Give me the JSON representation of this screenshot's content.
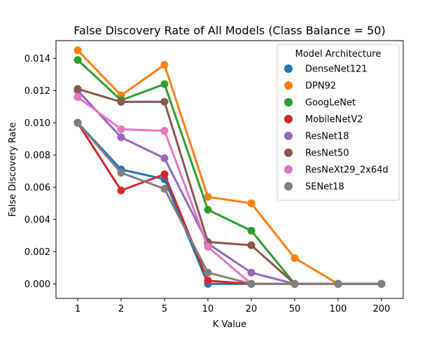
{
  "chart_data": {
    "type": "line",
    "title": "False Discovery Rate of All Models (Class Balance = 50)",
    "xlabel": "K Value",
    "ylabel": "False Discovery Rate",
    "categories": [
      "1",
      "2",
      "5",
      "10",
      "20",
      "50",
      "100",
      "200"
    ],
    "ylim": [
      -0.0009,
      0.0151
    ],
    "yticks": [
      0.0,
      0.002,
      0.004,
      0.006,
      0.008,
      0.01,
      0.012,
      0.014
    ],
    "ytick_labels": [
      "0.000",
      "0.002",
      "0.004",
      "0.006",
      "0.008",
      "0.010",
      "0.012",
      "0.014"
    ],
    "grid": false,
    "legend": {
      "title": "Model Architecture",
      "placement": "top-right"
    },
    "series": [
      {
        "name": "DenseNet121",
        "color": "#1f77b4",
        "values": [
          0.01,
          0.0071,
          0.0065,
          0.0,
          0.0,
          0.0,
          0.0,
          0.0
        ]
      },
      {
        "name": "DPN92",
        "color": "#ff7f0e",
        "values": [
          0.0145,
          0.0117,
          0.0136,
          0.0054,
          0.005,
          0.0016,
          0.0,
          0.0
        ]
      },
      {
        "name": "GoogLeNet",
        "color": "#2ca02c",
        "values": [
          0.0139,
          0.0114,
          0.0124,
          0.0046,
          0.0033,
          0.0,
          0.0,
          0.0
        ]
      },
      {
        "name": "MobileNetV2",
        "color": "#d62728",
        "values": [
          0.01,
          0.0058,
          0.0068,
          0.0002,
          0.0,
          0.0,
          0.0,
          0.0
        ]
      },
      {
        "name": "ResNet18",
        "color": "#9467bd",
        "values": [
          0.012,
          0.0091,
          0.0078,
          0.0025,
          0.0007,
          0.0,
          0.0,
          0.0
        ]
      },
      {
        "name": "ResNet50",
        "color": "#8c564b",
        "values": [
          0.0121,
          0.0113,
          0.0113,
          0.0026,
          0.0024,
          0.0,
          0.0,
          0.0
        ]
      },
      {
        "name": "ResNeXt29_2x64d",
        "color": "#e377c2",
        "values": [
          0.0116,
          0.0096,
          0.0095,
          0.0023,
          0.0,
          0.0,
          0.0,
          0.0
        ]
      },
      {
        "name": "SENet18",
        "color": "#7f7f7f",
        "values": [
          0.01,
          0.0069,
          0.0059,
          0.0007,
          0.0,
          0.0,
          0.0,
          0.0
        ]
      }
    ]
  }
}
